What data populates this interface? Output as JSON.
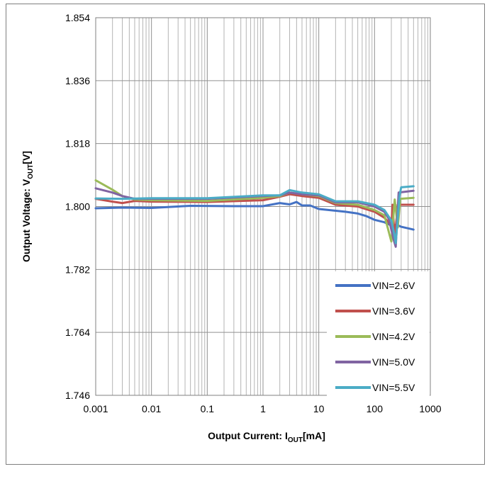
{
  "chart_data": {
    "type": "line",
    "xscale": "log",
    "xlim": [
      0.001,
      1000
    ],
    "ylim": [
      1.746,
      1.854
    ],
    "x_ticks": [
      "0.001",
      "0.01",
      "0.1",
      "1",
      "10",
      "100",
      "1000"
    ],
    "y_ticks": [
      "1.854",
      "1.836",
      "1.818",
      "1.800",
      "1.782",
      "1.764",
      "1.746"
    ],
    "grid": true,
    "legend_position": "bottom-right",
    "xlabel": {
      "prefix": "Output Current: I",
      "sub": "OUT",
      "suffix": "[mA]"
    },
    "ylabel": {
      "prefix": "Output Voltage: V",
      "sub": "OUT",
      "suffix": "[V]"
    },
    "series": [
      {
        "name": "VIN=2.6V",
        "color": "#4472c4",
        "points": [
          [
            0.001,
            1.7995
          ],
          [
            0.003,
            1.7997
          ],
          [
            0.01,
            1.7996
          ],
          [
            0.05,
            1.8002
          ],
          [
            0.3,
            1.8001
          ],
          [
            1,
            1.8001
          ],
          [
            2,
            1.801
          ],
          [
            3,
            1.8006
          ],
          [
            4,
            1.8013
          ],
          [
            5,
            1.8003
          ],
          [
            7,
            1.8003
          ],
          [
            10,
            1.7993
          ],
          [
            30,
            1.7985
          ],
          [
            50,
            1.798
          ],
          [
            70,
            1.7973
          ],
          [
            100,
            1.7962
          ],
          [
            150,
            1.7955
          ],
          [
            200,
            1.7946
          ],
          [
            250,
            1.7948
          ],
          [
            300,
            1.7942
          ],
          [
            500,
            1.7934
          ]
        ]
      },
      {
        "name": "VIN=3.6V",
        "color": "#c0504d",
        "points": [
          [
            0.001,
            1.8022
          ],
          [
            0.002,
            1.8014
          ],
          [
            0.003,
            1.801
          ],
          [
            0.005,
            1.8016
          ],
          [
            0.01,
            1.8014
          ],
          [
            0.1,
            1.8013
          ],
          [
            1,
            1.8018
          ],
          [
            2,
            1.8028
          ],
          [
            3,
            1.8035
          ],
          [
            5,
            1.803
          ],
          [
            10,
            1.8025
          ],
          [
            20,
            1.8005
          ],
          [
            50,
            1.8
          ],
          [
            100,
            1.7985
          ],
          [
            150,
            1.7968
          ],
          [
            180,
            1.7955
          ],
          [
            200,
            1.794
          ],
          [
            210,
            1.8005
          ],
          [
            230,
            1.7905
          ],
          [
            260,
            1.8005
          ],
          [
            500,
            1.8005
          ]
        ]
      },
      {
        "name": "VIN=4.2V",
        "color": "#9bbb59",
        "points": [
          [
            0.001,
            1.8075
          ],
          [
            0.002,
            1.8048
          ],
          [
            0.003,
            1.803
          ],
          [
            0.005,
            1.802
          ],
          [
            0.01,
            1.8018
          ],
          [
            0.1,
            1.8016
          ],
          [
            1,
            1.8025
          ],
          [
            2,
            1.803
          ],
          [
            3,
            1.804
          ],
          [
            5,
            1.8035
          ],
          [
            10,
            1.803
          ],
          [
            20,
            1.801
          ],
          [
            50,
            1.8005
          ],
          [
            100,
            1.799
          ],
          [
            150,
            1.7975
          ],
          [
            200,
            1.79
          ],
          [
            230,
            1.802
          ],
          [
            260,
            1.794
          ],
          [
            290,
            1.8022
          ],
          [
            500,
            1.8025
          ]
        ]
      },
      {
        "name": "VIN=5.0V",
        "color": "#8064a2",
        "points": [
          [
            0.001,
            1.8052
          ],
          [
            0.002,
            1.804
          ],
          [
            0.003,
            1.803
          ],
          [
            0.005,
            1.8022
          ],
          [
            0.01,
            1.8022
          ],
          [
            0.1,
            1.8022
          ],
          [
            1,
            1.803
          ],
          [
            2,
            1.8032
          ],
          [
            3,
            1.804
          ],
          [
            5,
            1.8035
          ],
          [
            10,
            1.8032
          ],
          [
            20,
            1.8012
          ],
          [
            50,
            1.8012
          ],
          [
            100,
            1.8
          ],
          [
            150,
            1.7985
          ],
          [
            180,
            1.7965
          ],
          [
            220,
            1.7905
          ],
          [
            240,
            1.7885
          ],
          [
            270,
            1.804
          ],
          [
            500,
            1.8045
          ]
        ]
      },
      {
        "name": "VIN=5.5V",
        "color": "#4bacc6",
        "points": [
          [
            0.001,
            1.8023
          ],
          [
            0.003,
            1.8022
          ],
          [
            0.01,
            1.8024
          ],
          [
            0.1,
            1.8024
          ],
          [
            1,
            1.8032
          ],
          [
            2,
            1.8032
          ],
          [
            3,
            1.8047
          ],
          [
            5,
            1.804
          ],
          [
            10,
            1.8035
          ],
          [
            20,
            1.8015
          ],
          [
            50,
            1.8015
          ],
          [
            100,
            1.8005
          ],
          [
            150,
            1.799
          ],
          [
            200,
            1.796
          ],
          [
            220,
            1.793
          ],
          [
            240,
            1.7895
          ],
          [
            280,
            1.803
          ],
          [
            300,
            1.8055
          ],
          [
            500,
            1.8058
          ]
        ]
      }
    ]
  }
}
